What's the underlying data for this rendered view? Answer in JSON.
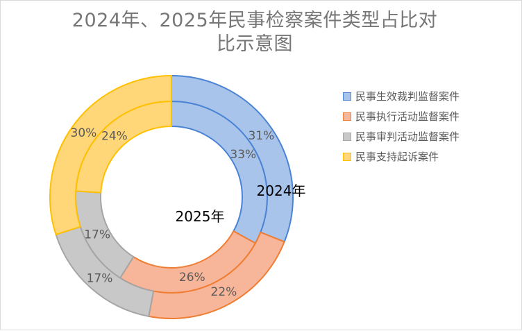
{
  "chart_data": {
    "type": "pie",
    "title": "2024年、2025年民事检察案件类型占比对比示意图",
    "title_lines": [
      "2024年、2025年民事检察案件类型占比对",
      "比示意图"
    ],
    "categories": [
      "民事生效裁判监督案件",
      "民事执行活动监督案件",
      "民事审判活动监督案件",
      "民事支持起诉案件"
    ],
    "series": [
      {
        "name": "2025年",
        "values": [
          33,
          26,
          17,
          24
        ],
        "labels": [
          "33%",
          "26%",
          "17%",
          "24%"
        ]
      },
      {
        "name": "2024年",
        "values": [
          31,
          22,
          17,
          30
        ],
        "labels": [
          "31%",
          "22%",
          "17%",
          "30%"
        ]
      }
    ],
    "fill_colors": [
      "#a9c4ea",
      "#f7b59a",
      "#c8c8c8",
      "#ffd779"
    ],
    "stroke_colors": [
      "#4b83d4",
      "#ef7d32",
      "#a5a5a5",
      "#ffc000"
    ],
    "legend_position": "right"
  }
}
